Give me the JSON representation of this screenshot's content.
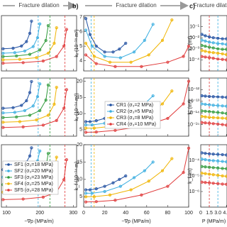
{
  "chart_data": [
    {
      "type": "line",
      "header": "Fracture dilation",
      "xlabel": "−∇p (MPa/m)",
      "xlim": [
        85,
        310
      ],
      "xticks": [
        100,
        200,
        300
      ],
      "series": [
        {
          "name": "SF1 (σ₃=18 MPa)",
          "color": "#1f4fa0",
          "x": [
            90,
            120,
            145,
            160,
            170,
            175
          ]
        },
        {
          "name": "SF2 (σ₃=20 MPa)",
          "color": "#3aaee0",
          "x": [
            90,
            125,
            155,
            180,
            193,
            200
          ]
        },
        {
          "name": "SF3 (σ₃=23 MPa)",
          "color": "#2e9a3a",
          "x": [
            90,
            130,
            170,
            200,
            218,
            225
          ]
        },
        {
          "name": "SF4 (σ₃=25 MPa)",
          "color": "#f0b400",
          "x": [
            90,
            140,
            190,
            225,
            243,
            250
          ]
        },
        {
          "name": "SF5 (σ₃=28 MPa)",
          "color": "#e03a3a",
          "x": [
            90,
            150,
            210,
            250,
            272,
            280
          ]
        }
      ],
      "vlines": [
        {
          "value": 195,
          "color": "#3aaee0"
        },
        {
          "value": 230,
          "color": "#2e9a3a"
        },
        {
          "value": 275,
          "color": "#e03a3a"
        }
      ],
      "subplots": [
        {
          "ylim": [
            0,
            10
          ],
          "values": [
            [
              4,
              4.1,
              4.5,
              5.3,
              6.8,
              9
            ],
            [
              3.2,
              3.3,
              3.6,
              4.4,
              6,
              8.5
            ],
            [
              2.6,
              2.7,
              3,
              3.8,
              5.5,
              8.2
            ],
            [
              2,
              2.1,
              2.4,
              3.2,
              5,
              7.8
            ],
            [
              1.4,
              1.5,
              1.8,
              2.6,
              4.5,
              7.5
            ]
          ]
        },
        {
          "ylim": [
            0,
            10
          ],
          "values": [
            [
              4.8,
              4.9,
              5.3,
              6.1,
              7.5,
              9.4
            ],
            [
              4,
              4.1,
              4.4,
              5.2,
              6.8,
              9
            ],
            [
              3.2,
              3.3,
              3.6,
              4.4,
              6.2,
              8.8
            ],
            [
              2.4,
              2.5,
              2.8,
              3.6,
              5.5,
              8.4
            ],
            [
              1.5,
              1.6,
              1.9,
              2.7,
              4.8,
              8
            ]
          ]
        },
        {
          "ylim": [
            0,
            10
          ],
          "values": [
            [
              6,
              6.1,
              6.5,
              7.2,
              8.2,
              9.5
            ],
            [
              4.8,
              4.9,
              5.2,
              6,
              7.4,
              9
            ],
            [
              3.6,
              3.7,
              4,
              4.8,
              6.4,
              8.6
            ],
            [
              2.4,
              2.5,
              2.8,
              3.6,
              5.4,
              8
            ],
            [
              1.2,
              1.3,
              1.6,
              2.4,
              4.4,
              7.6
            ]
          ]
        }
      ],
      "legend_subplot": 2
    },
    {
      "type": "line",
      "panel": "b)",
      "header": "Fracture dilation",
      "xlabel": "−∇p (MPa/m)",
      "xlim": [
        0,
        100
      ],
      "xticks": [
        0,
        20,
        40,
        60,
        80,
        100
      ],
      "series": [
        {
          "name": "CR1 (σ₃=2 MPa)",
          "color": "#1f4fa0",
          "x": [
            2,
            6,
            12,
            20,
            28,
            34,
            40
          ]
        },
        {
          "name": "CR2 (σ₃=5 MPa)",
          "color": "#3aaee0",
          "x": [
            2,
            8,
            20,
            35,
            48,
            58,
            66
          ]
        },
        {
          "name": "CR3 (σ₃=8 MPa)",
          "color": "#f0b400",
          "x": [
            2,
            10,
            25,
            45,
            62,
            75,
            84
          ]
        },
        {
          "name": "CR4 (σ₃=10 MPa)",
          "color": "#e03a3a",
          "x": [
            2,
            12,
            30,
            55,
            80,
            95,
            100
          ]
        }
      ],
      "vlines": [
        {
          "value": 7,
          "color": "#3aaee0"
        },
        {
          "value": 10,
          "color": "#f0b400"
        }
      ],
      "subplots": [
        {
          "ylabel": "kₓ (10⁻¹⁸ m²)",
          "ylim": [
            3.3,
            7.1
          ],
          "yticks": [
            4,
            5,
            6,
            7
          ],
          "values": [
            [
              6.9,
              5.8,
              5,
              4.6,
              4.6,
              4.8,
              5.2
            ],
            [
              6.1,
              5,
              4.3,
              4.2,
              4.6,
              5.4,
              6.5
            ],
            [
              5.2,
              4.3,
              3.9,
              3.9,
              4.4,
              5.4,
              6.8
            ],
            [
              4.4,
              3.8,
              3.6,
              3.6,
              3.9,
              4.3,
              5
            ]
          ]
        },
        {
          "ylabel": "kₓ (10⁻¹⁴ m²)",
          "ylim": [
            3,
            21
          ],
          "yticks": [
            5,
            10,
            15,
            20
          ],
          "values": [
            [
              7.5,
              7.5,
              7.8,
              8.5,
              9.5,
              10.5,
              11.5
            ],
            [
              6.5,
              6.5,
              7,
              8.5,
              11,
              13,
              15.5
            ],
            [
              5.5,
              5.5,
              6,
              7.5,
              10,
              13,
              17
            ],
            [
              4.2,
              4.3,
              4.8,
              6,
              8.5,
              13,
              20
            ]
          ]
        },
        {
          "ylabel": "k_f (10⁻¹⁴ m)",
          "ylim": [
            2,
            20
          ],
          "yticks": [
            5,
            10,
            15,
            20
          ],
          "values": [
            [
              7,
              7,
              7.3,
              8,
              9,
              10,
              11
            ],
            [
              6,
              6,
              6.5,
              8,
              10.5,
              12.5,
              15
            ],
            [
              5,
              5,
              5.5,
              7,
              9.5,
              12.5,
              16
            ],
            [
              3.5,
              3.6,
              4,
              5.5,
              8,
              12,
              19
            ]
          ]
        }
      ],
      "legend_subplot": 1
    },
    {
      "type": "line",
      "panel": "c)",
      "header": "Fracture dilation",
      "xlabel": "P (MPa/m)",
      "xlim": [
        0,
        4.6
      ],
      "xticks": [
        0,
        1.5,
        {
          "value": 3,
          "label": "3.0"
        },
        4.5
      ],
      "log": true,
      "x": [
        0.2,
        0.8,
        1.5,
        2.2,
        3,
        3.8,
        4.5
      ],
      "series": [
        {
          "color": "#1f4fa0"
        },
        {
          "color": "#3aaee0"
        },
        {
          "color": "#2e9a3a"
        },
        {
          "color": "#f0b400"
        },
        {
          "color": "#e03a3a"
        }
      ],
      "vlines": [
        {
          "value": 1.5,
          "color": "#e03a3a"
        },
        {
          "value": 3,
          "color": "#3aaee0"
        }
      ],
      "subplots": [
        {
          "ylabel": "kₓ (m²)",
          "ylim": [
            1e-05,
            1
          ],
          "yticks": [
            {
              "value": 0.1,
              "label": "10⁻¹"
            },
            {
              "value": 0.01,
              "label": "10⁻²"
            },
            {
              "value": 0.001,
              "label": "10⁻³"
            },
            {
              "value": 0.0001,
              "label": "10⁻⁴"
            }
          ],
          "values": [
            [
              0.02,
              0.015,
              0.012,
              0.01,
              0.009,
              0.008,
              0.008
            ],
            [
              0.006,
              0.005,
              0.004,
              0.0035,
              0.003,
              0.0028,
              0.0025
            ],
            [
              0.002,
              0.0017,
              0.0014,
              0.0012,
              0.001,
              0.0009,
              0.0009
            ],
            [
              0.0007,
              0.0006,
              0.0005,
              0.00045,
              0.0004,
              0.00035,
              0.0003
            ],
            [
              0.0002,
              0.00018,
              0.00016,
              0.00014,
              0.00012,
              0.00011,
              0.0001
            ]
          ]
        },
        {
          "ylabel": "kₓ (m²)",
          "ylim": [
            1e-16,
            1e-11
          ],
          "yticks": [
            {
              "value": 1e-12,
              "label": "10⁻¹²"
            },
            {
              "value": 1e-13,
              "label": "10⁻¹³"
            },
            {
              "value": 1e-14,
              "label": "10⁻¹⁴"
            },
            {
              "value": 1e-15,
              "label": "10⁻¹⁵"
            }
          ],
          "values": [
            [
              3e-13,
              2.8e-13,
              2.6e-13,
              2.5e-13,
              2.4e-13,
              2.3e-13,
              2.2e-13
            ],
            [
              6e-14,
              5.5e-14,
              5e-14,
              4.6e-14,
              4.3e-14,
              4e-14,
              3.8e-14
            ],
            [
              1.5e-14,
              1.4e-14,
              1.3e-14,
              1.2e-14,
              1.1e-14,
              1e-14,
              9e-15
            ],
            [
              5e-15,
              4.6e-15,
              4.2e-15,
              4e-15,
              3.8e-15,
              3.6e-15,
              3.4e-15
            ],
            [
              1.5e-15,
              1.4e-15,
              1.3e-15,
              1.2e-15,
              1.1e-15,
              1e-15,
              9e-16
            ]
          ]
        },
        {
          "ylabel": "k_f (m)",
          "ylim": [
            1e-07,
            0.001
          ],
          "yticks": [
            {
              "value": 0.0001,
              "label": "10⁻⁴"
            },
            {
              "value": 1e-05,
              "label": "10⁻⁵"
            },
            {
              "value": 1e-06,
              "label": "10⁻⁶"
            }
          ],
          "values": [
            [
              0.0003,
              0.00028,
              0.00026,
              0.00025,
              0.00024,
              0.00023,
              0.00022
            ],
            [
              0.00012,
              0.00011,
              0.0001,
              9.5e-05,
              9e-05,
              8.5e-05,
              8e-05
            ],
            [
              4e-05,
              3.8e-05,
              3.6e-05,
              3.4e-05,
              3.2e-05,
              3e-05,
              2.9e-05
            ],
            [
              1.5e-05,
              1.4e-05,
              1.3e-05,
              1.2e-05,
              1.1e-05,
              1e-05,
              9.5e-06
            ],
            [
              4e-06,
              3.8e-06,
              3.6e-06,
              3.4e-06,
              3.2e-06,
              3e-06,
              2.9e-06
            ]
          ]
        }
      ]
    }
  ]
}
